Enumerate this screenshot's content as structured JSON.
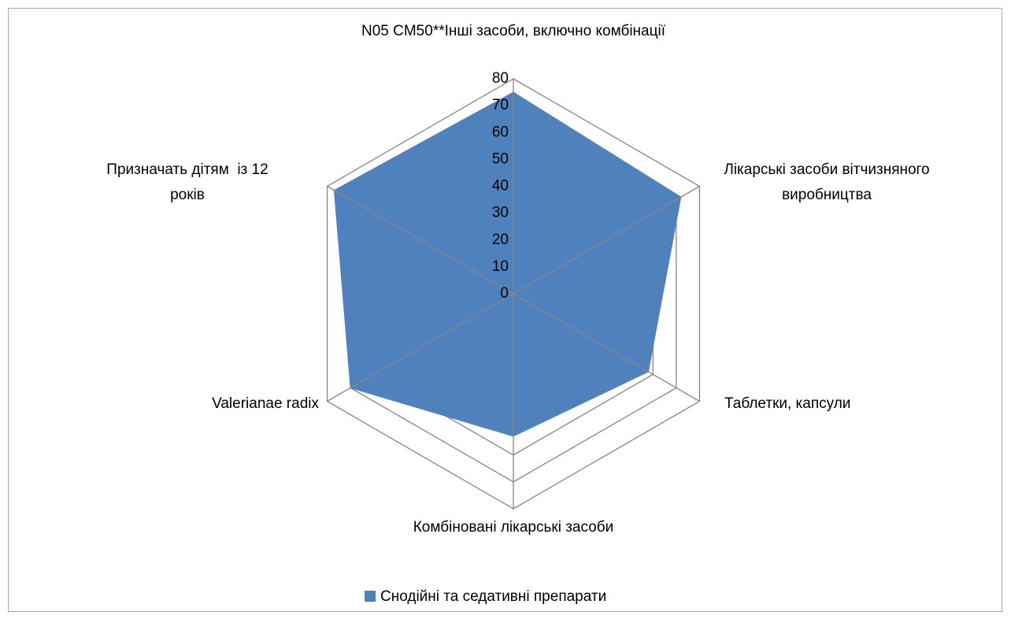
{
  "chart_data": {
    "type": "radar",
    "categories": [
      "N05 CM50**Інші засоби, включно комбінації",
      "Лікарські засоби вітчизняного виробництва",
      "Таблетки, капсули",
      "Комбіновані лікарські засоби",
      "Valerianae radix",
      "Призначать дітям  із 12 років"
    ],
    "series": [
      {
        "name": "Снодійні та седативні препарати",
        "color": "#4f81bd",
        "values": [
          75,
          72,
          58,
          53,
          70,
          77
        ]
      }
    ],
    "ylim": [
      0,
      80
    ],
    "yticks": [
      0,
      10,
      20,
      30,
      40,
      50,
      60,
      70,
      80
    ],
    "grid": true,
    "legend": "bottom"
  }
}
